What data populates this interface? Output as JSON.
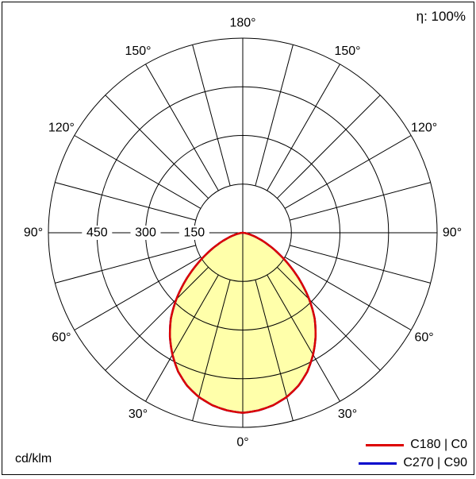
{
  "header": {
    "efficiency": "η: 100%"
  },
  "footer": {
    "unit": "cd/klm"
  },
  "chart_data": {
    "type": "polar",
    "unit": "cd/klm",
    "efficiency": "η: 100%",
    "angle_ticks": [
      0,
      30,
      60,
      90,
      120,
      150,
      180
    ],
    "angle_tick_suffix": "°",
    "radial_ticks": [
      150,
      300,
      450
    ],
    "radial_max": 600,
    "grid": true,
    "gamma_step": 5,
    "fill_color": "#ffffaa",
    "legend_position": "bottom-right",
    "series": [
      {
        "name": "C180 | C0",
        "color": "#dd0000",
        "values": [
          555,
          550,
          540,
          524,
          502,
          472,
          434,
          392,
          345,
          290,
          232,
          176,
          126,
          85,
          52,
          28,
          12,
          3,
          0
        ]
      },
      {
        "name": "C270 | C90",
        "color": "#0000cc",
        "values": [
          555,
          550,
          540,
          524,
          502,
          472,
          434,
          392,
          345,
          290,
          232,
          176,
          126,
          85,
          52,
          28,
          12,
          3,
          0
        ]
      }
    ]
  }
}
